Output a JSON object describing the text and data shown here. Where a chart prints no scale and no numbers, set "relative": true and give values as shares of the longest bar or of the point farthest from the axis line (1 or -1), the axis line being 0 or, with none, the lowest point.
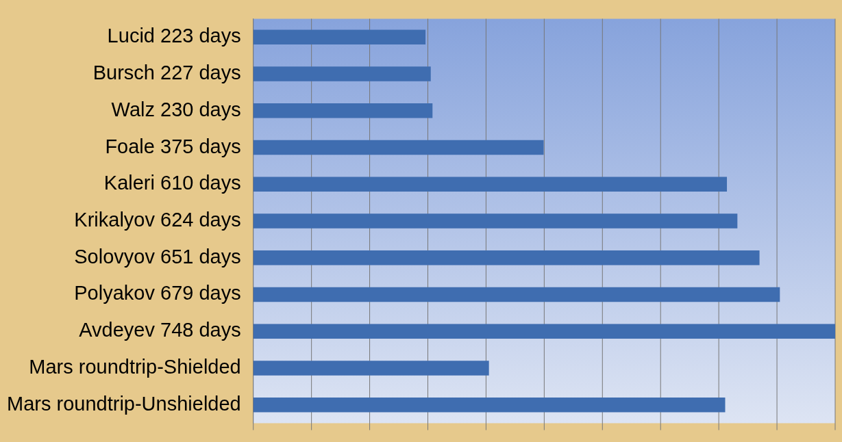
{
  "chart_data": {
    "type": "bar",
    "orientation": "horizontal",
    "relative": true,
    "grid": "x",
    "legend": false,
    "categories": [
      "Lucid 223 days",
      "Bursch 227 days",
      "Walz 230 days",
      "Foale 375 days",
      "Kaleri 610 days",
      "Krikalyov 624 days",
      "Solovyov 651 days",
      "Polyakov 679 days",
      "Avdeyev 748 days",
      "Mars roundtrip-Shielded",
      "Mars roundtrip-Unshielded"
    ],
    "values": [
      0.296,
      0.305,
      0.308,
      0.499,
      0.814,
      0.832,
      0.87,
      0.905,
      1,
      0.405,
      0.811
    ],
    "color": "#3f6db0"
  }
}
